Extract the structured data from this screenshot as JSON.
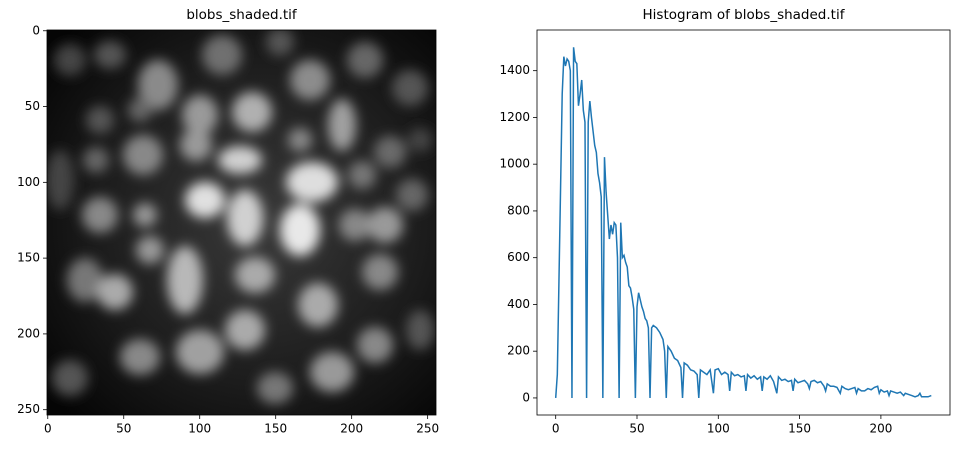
{
  "chart_data": [
    {
      "type": "image",
      "title": "blobs_shaded.tif",
      "xlim": [
        -0.5,
        255.5
      ],
      "ylim": [
        253.5,
        -0.5
      ],
      "xticks": [
        0,
        50,
        100,
        150,
        200,
        250
      ],
      "yticks": [
        0,
        50,
        100,
        150,
        200,
        250
      ]
    },
    {
      "type": "line",
      "title": "Histogram of blobs_shaded.tif",
      "color": "#1f77b4",
      "xlim": [
        -11.5,
        242.5
      ],
      "ylim": [
        -73,
        1574
      ],
      "xticks": [
        0,
        50,
        100,
        150,
        200
      ],
      "yticks": [
        0,
        200,
        400,
        600,
        800,
        1000,
        1200,
        1400
      ],
      "x": [
        0,
        1,
        2,
        3,
        4,
        5,
        6,
        7,
        8,
        9,
        10,
        11,
        12,
        13,
        14,
        15,
        16,
        17,
        18,
        19,
        20,
        21,
        22,
        23,
        24,
        25,
        26,
        27,
        28,
        29,
        30,
        31,
        32,
        33,
        34,
        35,
        36,
        37,
        38,
        39,
        40,
        41,
        42,
        43,
        44,
        45,
        46,
        47,
        48,
        49,
        50,
        51,
        52,
        53,
        54,
        55,
        56,
        57,
        58,
        59,
        60,
        62,
        64,
        66,
        67,
        68,
        69,
        71,
        73,
        75,
        77,
        78,
        79,
        81,
        83,
        85,
        87,
        88,
        89,
        91,
        93,
        95,
        97,
        98,
        100,
        102,
        104,
        106,
        107,
        108,
        110,
        112,
        114,
        116,
        117,
        118,
        120,
        122,
        124,
        126,
        127,
        128,
        130,
        132,
        134,
        136,
        137,
        139,
        141,
        143,
        145,
        146,
        147,
        149,
        151,
        153,
        155,
        156,
        157,
        159,
        161,
        163,
        165,
        166,
        167,
        169,
        171,
        173,
        175,
        176,
        178,
        180,
        182,
        184,
        185,
        186,
        188,
        190,
        192,
        194,
        196,
        198,
        199,
        200,
        202,
        204,
        205,
        206,
        208,
        210,
        212,
        214,
        215,
        217,
        219,
        221,
        223,
        224,
        225,
        227,
        229,
        231
      ],
      "values": [
        0,
        100,
        500,
        900,
        1300,
        1460,
        1420,
        1450,
        1440,
        1400,
        0,
        1500,
        1440,
        1430,
        1250,
        1300,
        1360,
        1230,
        1180,
        0,
        1180,
        1270,
        1200,
        1140,
        1080,
        1050,
        960,
        920,
        860,
        0,
        1030,
        880,
        780,
        680,
        740,
        700,
        750,
        740,
        600,
        0,
        750,
        600,
        610,
        580,
        560,
        480,
        470,
        430,
        380,
        0,
        390,
        450,
        420,
        390,
        370,
        340,
        330,
        300,
        0,
        300,
        310,
        300,
        280,
        250,
        200,
        0,
        220,
        200,
        170,
        160,
        130,
        0,
        150,
        140,
        120,
        115,
        100,
        0,
        120,
        110,
        100,
        120,
        20,
        120,
        125,
        100,
        110,
        100,
        30,
        110,
        95,
        100,
        90,
        95,
        30,
        100,
        85,
        95,
        80,
        90,
        30,
        90,
        80,
        95,
        70,
        20,
        90,
        75,
        80,
        70,
        75,
        30,
        80,
        65,
        70,
        75,
        60,
        40,
        70,
        75,
        65,
        70,
        50,
        30,
        60,
        50,
        50,
        45,
        20,
        50,
        40,
        35,
        40,
        45,
        20,
        40,
        30,
        30,
        40,
        35,
        45,
        50,
        20,
        35,
        25,
        30,
        10,
        30,
        25,
        20,
        25,
        10,
        20,
        15,
        10,
        5,
        10,
        20,
        5,
        5,
        5,
        10
      ]
    }
  ]
}
